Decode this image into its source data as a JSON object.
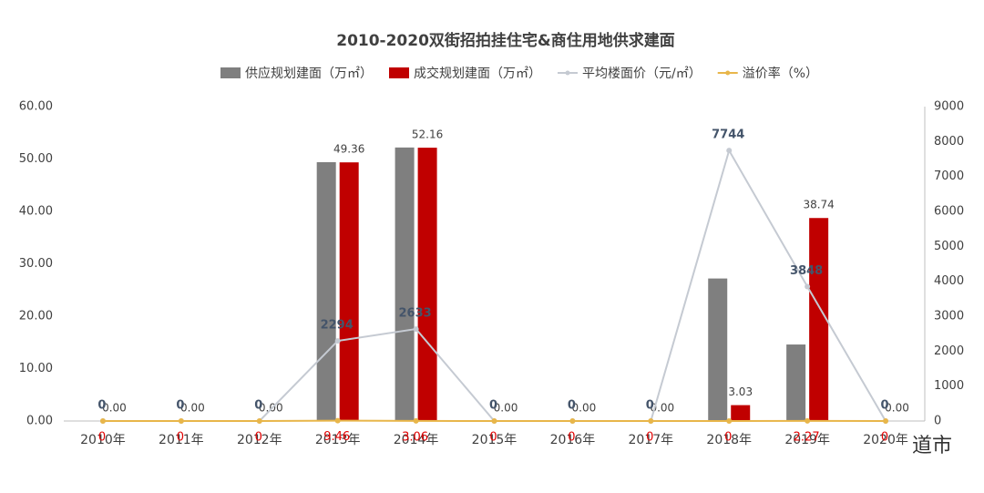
{
  "chart_data": {
    "type": "bar-line",
    "title": "2010-2020双街招拍挂住宅&商住用地供求建面",
    "categories": [
      "2010年",
      "2011年",
      "2012年",
      "2013年",
      "2014年",
      "2015年",
      "2016年",
      "2017年",
      "2018年",
      "2019年",
      "2020年"
    ],
    "series": [
      {
        "name": "供应规划建面（万㎡）",
        "type": "bar",
        "color": "#7f7f7f",
        "values": [
          0,
          0,
          0,
          49.4,
          52.2,
          0,
          0,
          0,
          27.2,
          14.6,
          0
        ]
      },
      {
        "name": "成交规划建面（万㎡）",
        "type": "bar",
        "color": "#c00000",
        "values": [
          0,
          0,
          0,
          49.36,
          52.16,
          0,
          0,
          0,
          3.03,
          38.74,
          0
        ],
        "value_labels": [
          "0.00",
          "0.00",
          "0.00",
          "49.36",
          "52.16",
          "0.00",
          "0.00",
          "0.00",
          "3.03",
          "38.74",
          "0.00"
        ]
      },
      {
        "name": "平均楼面价（元/㎡）",
        "type": "line",
        "axis": "y2",
        "color": "#c5cad2",
        "values": [
          0,
          0,
          0,
          2294,
          2633,
          0,
          0,
          0,
          7744,
          3848,
          0
        ]
      },
      {
        "name": "溢价率（%）",
        "type": "line",
        "axis": "y2",
        "color": "#e8b64a",
        "values": [
          0,
          0,
          0,
          9.46,
          3.06,
          0,
          0,
          0,
          0,
          2.27,
          0
        ]
      }
    ],
    "ylim": [
      0,
      60
    ],
    "yticks": [
      {
        "value": 0,
        "label": "0.00"
      },
      {
        "value": 10,
        "label": "10.00"
      },
      {
        "value": 20,
        "label": "20.00"
      },
      {
        "value": 30,
        "label": "30.00"
      },
      {
        "value": 40,
        "label": "40.00"
      },
      {
        "value": 50,
        "label": "50.00"
      },
      {
        "value": 60,
        "label": "60.00"
      }
    ],
    "y2lim": [
      0,
      9000
    ],
    "y2ticks": [
      0,
      1000,
      2000,
      3000,
      4000,
      5000,
      6000,
      7000,
      8000,
      9000
    ],
    "legend": "top",
    "watermark": "道市"
  }
}
